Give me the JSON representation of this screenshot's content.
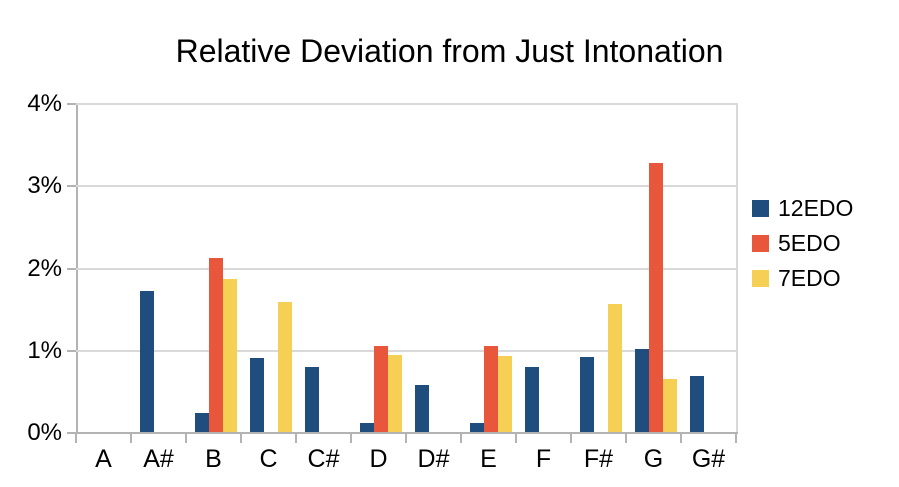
{
  "chart_data": {
    "type": "bar",
    "title": "Relative Deviation from Just Intonation",
    "categories": [
      "A",
      "A#",
      "B",
      "C",
      "C#",
      "D",
      "D#",
      "E",
      "F",
      "F#",
      "G",
      "G#"
    ],
    "series": [
      {
        "name": "12EDO",
        "color": "#1F4E7E",
        "values": [
          0,
          1.71,
          0.23,
          0.9,
          0.79,
          0.11,
          0.57,
          0.11,
          0.79,
          0.91,
          1.01,
          0.68
        ]
      },
      {
        "name": "5EDO",
        "color": "#E8573B",
        "values": [
          0,
          0,
          2.11,
          0,
          0,
          1.04,
          0,
          1.05,
          0,
          0,
          3.27,
          0
        ]
      },
      {
        "name": "7EDO",
        "color": "#F6CF55",
        "values": [
          0,
          0,
          1.86,
          1.58,
          0,
          0.94,
          0,
          0.93,
          0,
          1.56,
          0.64,
          0
        ]
      }
    ],
    "ylim": [
      0,
      4
    ],
    "yticks": [
      0,
      1,
      2,
      3,
      4
    ],
    "ytick_labels": [
      "0%",
      "1%",
      "2%",
      "3%",
      "4%"
    ],
    "grid": true,
    "legend_position": "right",
    "colors": {
      "background": "#FFFFFF",
      "axis": "#B3B3B3",
      "grid": "#D9D9D9",
      "text": "#000000"
    }
  }
}
